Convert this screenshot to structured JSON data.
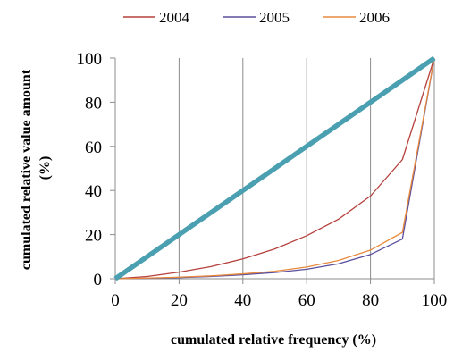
{
  "chart_data": {
    "type": "line",
    "title": "",
    "xlabel": "cumulated relative frequency (%)",
    "ylabel": [
      "cumulated relative value amount",
      "(%)"
    ],
    "xlim": [
      0,
      100
    ],
    "ylim": [
      0,
      100
    ],
    "xticks": [
      0,
      20,
      40,
      60,
      80,
      100
    ],
    "yticks": [
      0,
      20,
      40,
      60,
      80,
      100
    ],
    "grid": true,
    "legend_position": "top",
    "x": [
      0,
      10,
      20,
      30,
      40,
      50,
      60,
      70,
      80,
      90,
      100
    ],
    "series": [
      {
        "name": "2004",
        "color": "#b5403c",
        "values": [
          0,
          1,
          3,
          5.5,
          9,
          13.5,
          19.5,
          27,
          37.5,
          54,
          100
        ]
      },
      {
        "name": "2005",
        "color": "#5a4f9e",
        "values": [
          0,
          0.2,
          0.5,
          1,
          1.8,
          2.8,
          4.3,
          6.8,
          11,
          18,
          100
        ]
      },
      {
        "name": "2006",
        "color": "#e88a3e",
        "values": [
          0,
          0.3,
          0.7,
          1.3,
          2.2,
          3.4,
          5.3,
          8.3,
          13,
          21,
          100
        ]
      },
      {
        "color": "#4aa0b0",
        "values": [
          0,
          10,
          20,
          30,
          40,
          50,
          60,
          70,
          80,
          90,
          100
        ]
      }
    ]
  }
}
